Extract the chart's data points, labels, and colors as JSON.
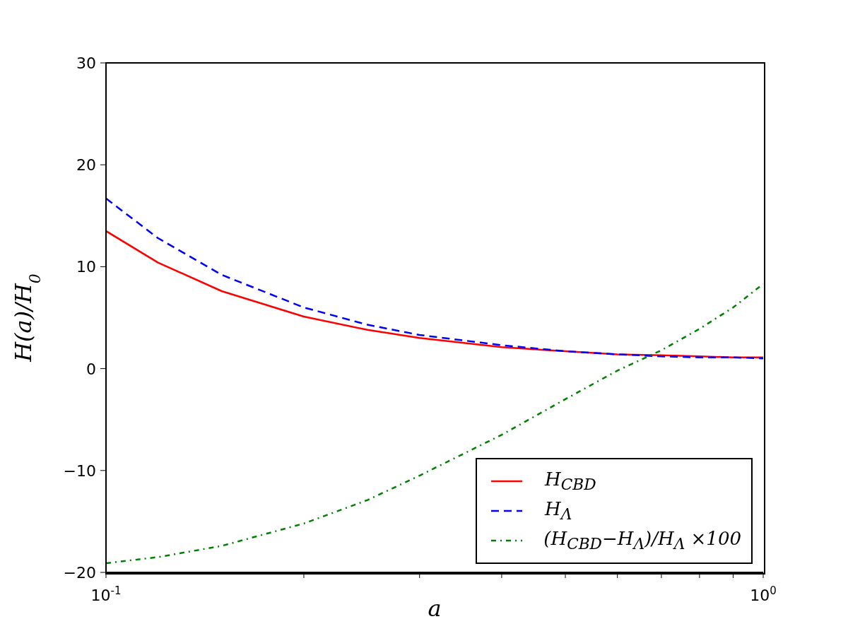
{
  "chart_data": {
    "type": "line",
    "xlabel": "a",
    "ylabel": "H(a)/H$_{0}$",
    "x": [
      0.1,
      0.12,
      0.15,
      0.2,
      0.25,
      0.3,
      0.4,
      0.5,
      0.6,
      0.7,
      0.8,
      0.9,
      1.0
    ],
    "series": [
      {
        "name": "H$_{CBD}$",
        "color": "#ff0000",
        "line_style": "solid",
        "values": [
          13.5,
          10.4,
          7.6,
          5.1,
          3.8,
          3.0,
          2.1,
          1.7,
          1.4,
          1.3,
          1.2,
          1.1,
          1.1
        ]
      },
      {
        "name": "H$_{Λ}$",
        "color": "#0000ff",
        "line_style": "dashed",
        "values": [
          16.7,
          12.8,
          9.2,
          6.0,
          4.3,
          3.3,
          2.3,
          1.7,
          1.4,
          1.2,
          1.1,
          1.1,
          1.0
        ]
      },
      {
        "name": "(H$_{CBD}$−H$_{Λ}$)/H$_{Λ}$ ×100",
        "color": "#008000",
        "line_style": "dashdot",
        "values": [
          -19.1,
          -18.5,
          -17.4,
          -15.2,
          -12.9,
          -10.5,
          -6.5,
          -3.0,
          -0.2,
          1.8,
          3.9,
          6.0,
          8.3
        ]
      }
    ],
    "log": "x",
    "xlim": [
      0.1,
      1
    ],
    "ylim": [
      -20,
      30
    ],
    "xticks": [
      {
        "value": 0.1,
        "label": "10$^{-1}$"
      },
      {
        "value": 0.2,
        "label": null
      },
      {
        "value": 0.3,
        "label": null
      },
      {
        "value": 0.4,
        "label": null
      },
      {
        "value": 0.5,
        "label": null
      },
      {
        "value": 0.6,
        "label": null
      },
      {
        "value": 0.7,
        "label": null
      },
      {
        "value": 0.8,
        "label": null
      },
      {
        "value": 0.9,
        "label": null
      },
      {
        "value": 1,
        "label": "10$^{0}$"
      }
    ],
    "yticks": [
      {
        "value": -20,
        "label": "−20"
      },
      {
        "value": -10,
        "label": "−10"
      },
      0,
      10,
      20,
      30
    ],
    "legend": "bottom right",
    "marker": "none",
    "grid": false
  }
}
